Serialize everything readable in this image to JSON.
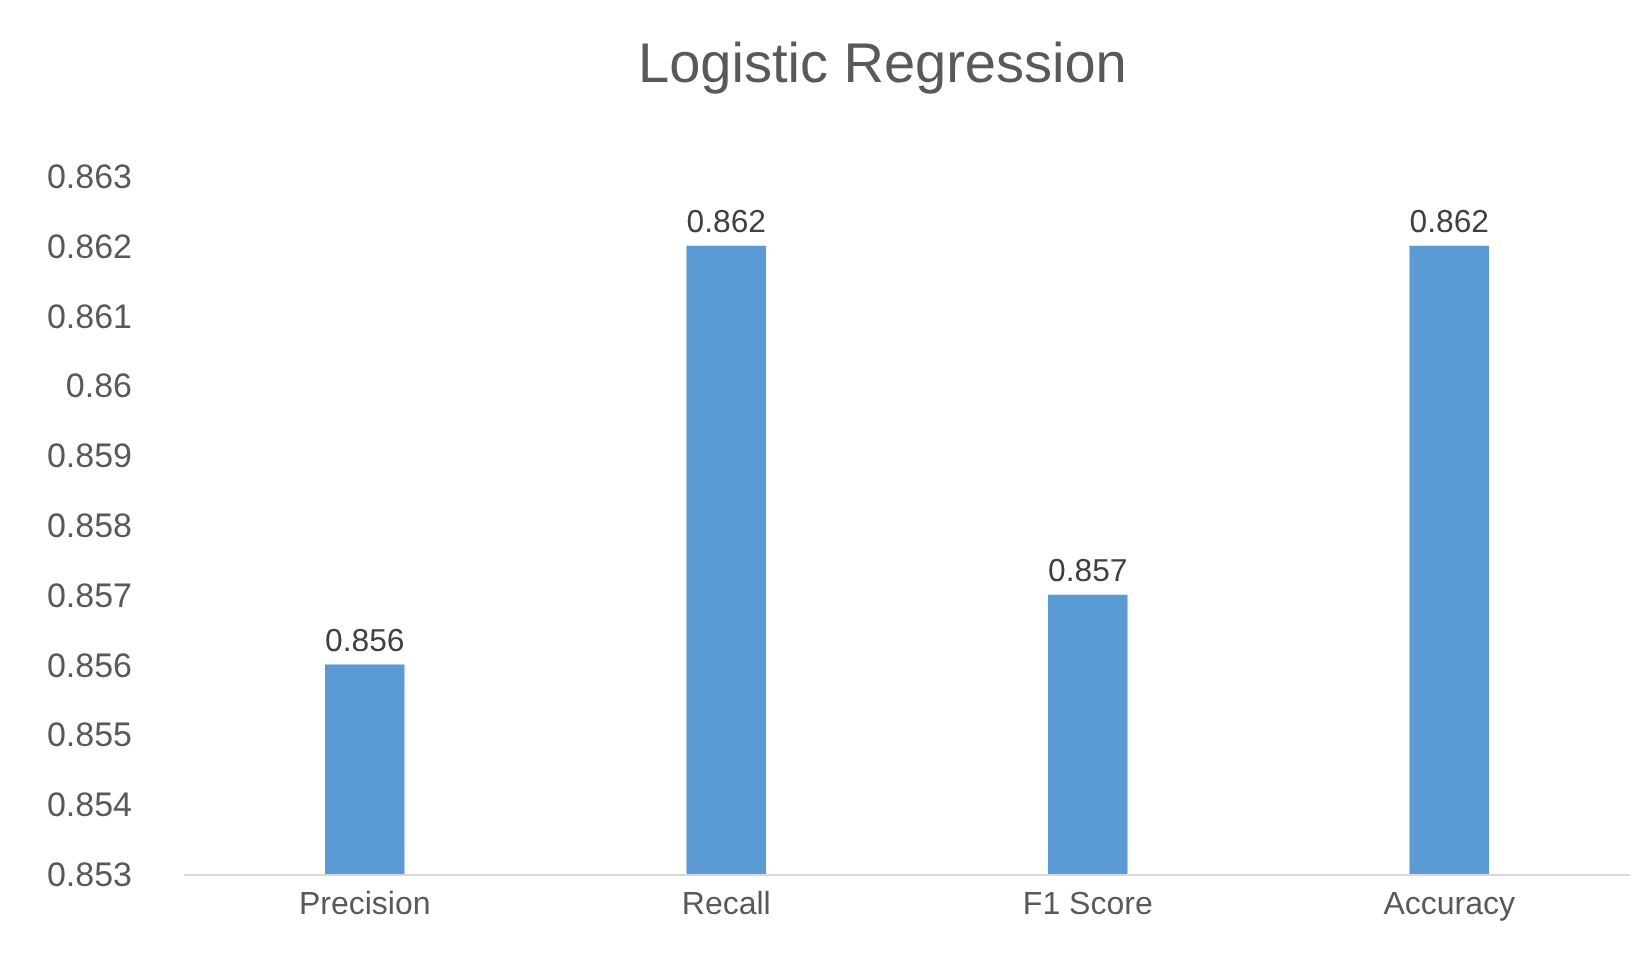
{
  "chart_data": {
    "type": "bar",
    "title": "Logistic Regression",
    "categories": [
      "Precision",
      "Recall",
      "F1 Score",
      "Accuracy"
    ],
    "values": [
      0.856,
      0.862,
      0.857,
      0.862
    ],
    "color": "#5b9bd5",
    "ylim": [
      0.853,
      0.863
    ],
    "yticks": [
      0.853,
      0.854,
      0.855,
      0.856,
      0.857,
      0.858,
      0.859,
      0.86,
      0.861,
      0.862,
      0.863
    ],
    "data_labels": true
  }
}
